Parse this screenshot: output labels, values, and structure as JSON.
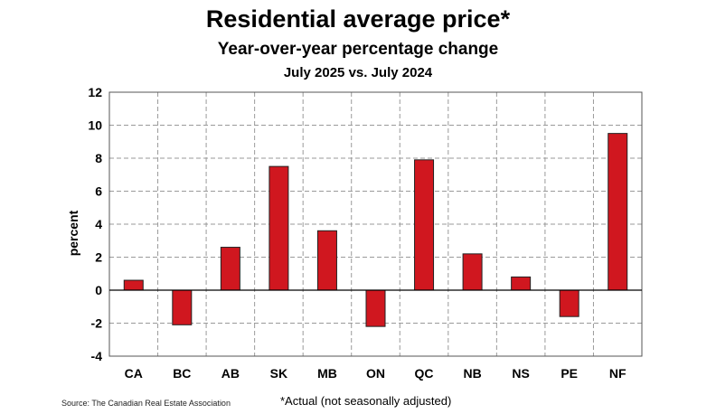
{
  "chart_data": {
    "type": "bar",
    "title": "Residential average price*",
    "subtitle": "Year-over-year percentage change",
    "subtitle2": "July 2025 vs. July 2024",
    "ylabel": "percent",
    "xlabel": "",
    "categories": [
      "CA",
      "BC",
      "AB",
      "SK",
      "MB",
      "ON",
      "QC",
      "NB",
      "NS",
      "PE",
      "NF"
    ],
    "values": [
      0.6,
      -2.1,
      2.6,
      7.5,
      3.6,
      -2.2,
      7.9,
      2.2,
      0.8,
      -1.6,
      9.5
    ],
    "ylim": [
      -4,
      12
    ],
    "yticks": [
      12,
      10,
      8,
      6,
      4,
      2,
      0,
      -2,
      -4
    ],
    "grid": true,
    "bar_color": "#d0171f",
    "legend": "none"
  },
  "footer": {
    "source": "Source: The Canadian Real Estate Association",
    "note": "*Actual (not seasonally adjusted)"
  }
}
